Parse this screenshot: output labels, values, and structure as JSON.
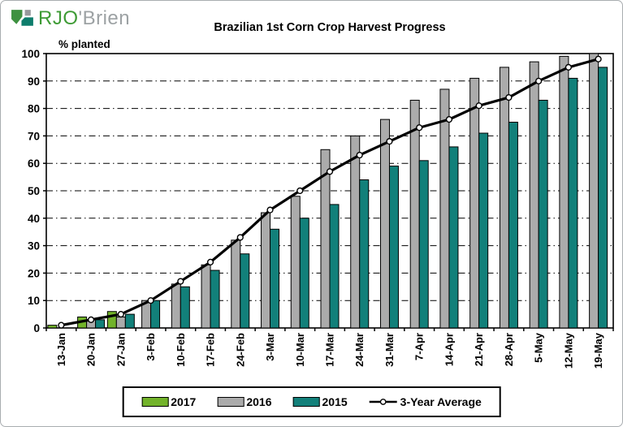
{
  "logo": {
    "text_green": "RJO",
    "text_gray": "'Brien"
  },
  "chart_data": {
    "type": "bar",
    "title": "Brazilian 1st Corn Crop Harvest Progress",
    "ylabel": "% planted",
    "ylim": [
      0,
      100
    ],
    "y_ticks": [
      0,
      10,
      20,
      30,
      40,
      50,
      60,
      70,
      80,
      90,
      100
    ],
    "grid": "horizontal dash-dot",
    "legend_position": "bottom",
    "categories": [
      "13-Jan",
      "20-Jan",
      "27-Jan",
      "3-Feb",
      "10-Feb",
      "17-Feb",
      "24-Feb",
      "3-Mar",
      "10-Mar",
      "17-Mar",
      "24-Mar",
      "31-Mar",
      "7-Apr",
      "14-Apr",
      "21-Apr",
      "28-Apr",
      "5-May",
      "12-May",
      "19-May"
    ],
    "series": [
      {
        "name": "2017",
        "type": "bar",
        "color": "#72b32a",
        "values": [
          1,
          4,
          6,
          null,
          null,
          null,
          null,
          null,
          null,
          null,
          null,
          null,
          null,
          null,
          null,
          null,
          null,
          null,
          null
        ]
      },
      {
        "name": "2016",
        "type": "bar",
        "color": "#ababab",
        "values": [
          0,
          3,
          4,
          10,
          16,
          23,
          32,
          42,
          48,
          65,
          70,
          76,
          83,
          87,
          91,
          95,
          97,
          99,
          100
        ]
      },
      {
        "name": "2015",
        "type": "bar",
        "color": "#12807a",
        "values": [
          0,
          3,
          5,
          10,
          15,
          21,
          27,
          36,
          40,
          45,
          54,
          59,
          61,
          66,
          71,
          75,
          83,
          91,
          95
        ]
      },
      {
        "name": "3-Year Average",
        "type": "line",
        "color": "#000000",
        "marker": "#ffffff",
        "values": [
          1,
          3,
          5,
          10,
          17,
          24,
          33,
          43,
          50,
          57,
          63,
          68,
          73,
          76,
          81,
          84,
          90,
          95,
          98
        ]
      }
    ]
  }
}
